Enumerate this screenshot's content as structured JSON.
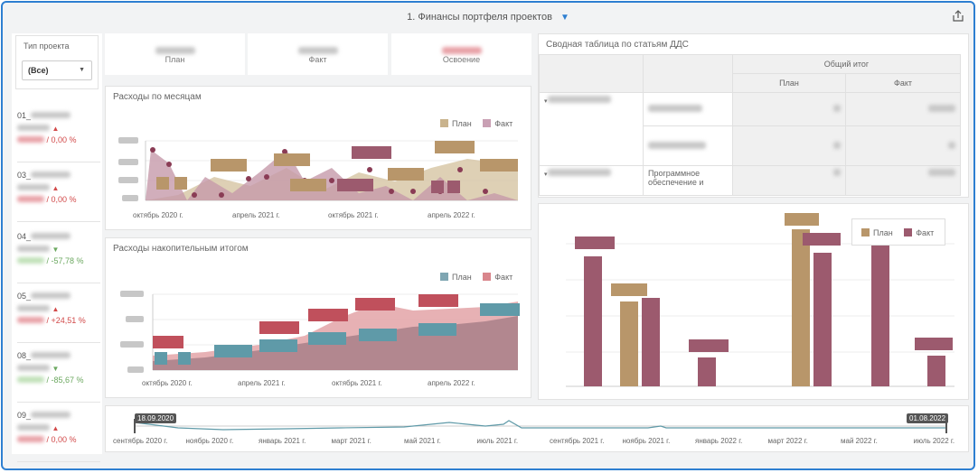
{
  "header": {
    "title": "1. Финансы портфеля проектов",
    "filter_icon": "filter-icon",
    "share_icon": "share-icon"
  },
  "filter": {
    "label": "Тип проекта",
    "value": "(Все)"
  },
  "kpis": [
    {
      "label": "План"
    },
    {
      "label": "Факт"
    },
    {
      "label": "Освоение"
    }
  ],
  "projects": [
    {
      "name": "01_",
      "trend": "up",
      "pct": " / 0,00 %"
    },
    {
      "name": "03_",
      "trend": "up",
      "pct": " / 0,00 %"
    },
    {
      "name": "04_",
      "trend": "down",
      "pct": " / -57,78 %"
    },
    {
      "name": "05_",
      "trend": "up",
      "pct": " / +24,51 %"
    },
    {
      "name": "08_",
      "trend": "down",
      "pct": " / -85,67 %"
    },
    {
      "name": "09_",
      "trend": "up",
      "pct": " / 0,00 %"
    }
  ],
  "monthly": {
    "title": "Расходы по месяцам",
    "legend": [
      "План",
      "Факт"
    ],
    "xticks": [
      "октябрь 2020 г.",
      "апрель 2021 г.",
      "октябрь 2021 г.",
      "апрель 2022 г."
    ]
  },
  "cumulative": {
    "title": "Расходы накопительным итогом",
    "legend": [
      "План",
      "Факт"
    ],
    "xticks": [
      "октябрь 2020 г.",
      "апрель 2021 г.",
      "октябрь 2021 г.",
      "апрель 2022 г."
    ]
  },
  "pivot": {
    "title": "Сводная таблица по статьям ДДС",
    "total_header": "Общий итог",
    "plan_header": "План",
    "fact_header": "Факт",
    "row_item": "Программное обеспечение и"
  },
  "bars": {
    "legend": [
      "План",
      "Факт"
    ]
  },
  "timeline": {
    "start": "18.09.2020",
    "end": "01.08.2022",
    "ticks": [
      "сентябрь 2020 г.",
      "ноябрь 2020 г.",
      "январь 2021 г.",
      "март 2021 г.",
      "май 2021 г.",
      "июль 2021 г.",
      "сентябрь 2021 г.",
      "ноябрь 2021 г.",
      "январь 2022 г.",
      "март 2022 г.",
      "май 2022 г.",
      "июль 2022 г."
    ]
  },
  "colors": {
    "plan": "#b8966a",
    "fact": "#9c5a6e",
    "plan_cum": "#7fa6b2",
    "fact_cum": "#d9868c",
    "accent": "#2e7fd1"
  }
}
